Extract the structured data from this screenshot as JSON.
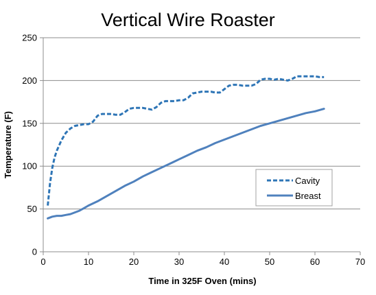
{
  "chart_data": {
    "type": "line",
    "title": "Vertical Wire Roaster",
    "xlabel": "Time in 325F  Oven (mins)",
    "ylabel": "Temperature (F)",
    "xlim": [
      0,
      70
    ],
    "ylim": [
      0,
      250
    ],
    "xticks": [
      0,
      10,
      20,
      30,
      40,
      50,
      60,
      70
    ],
    "yticks": [
      0,
      50,
      100,
      150,
      200,
      250
    ],
    "grid": "horizontal",
    "legend": "right",
    "series": [
      {
        "name": "Cavity",
        "style": "dashed",
        "color": "#2E75B6",
        "x": [
          1,
          1.5,
          2,
          2.5,
          3,
          3.5,
          4,
          5,
          6,
          7,
          8,
          9,
          10,
          11,
          12,
          13,
          14,
          15,
          16,
          17,
          18,
          19,
          20,
          21,
          22,
          23,
          24,
          25,
          26,
          27,
          28,
          29,
          30,
          31,
          32,
          33,
          34,
          35,
          36,
          37,
          38,
          39,
          40,
          41,
          42,
          43,
          44,
          45,
          46,
          47,
          48,
          49,
          50,
          51,
          52,
          53,
          54,
          55,
          56,
          57,
          58,
          59,
          60,
          61,
          62
        ],
        "values": [
          54,
          80,
          98,
          110,
          118,
          124,
          130,
          139,
          144,
          147,
          148,
          149,
          149,
          152,
          159,
          161,
          161,
          161,
          160,
          160,
          163,
          167,
          168,
          168,
          168,
          167,
          166,
          169,
          174,
          176,
          176,
          176,
          177,
          177,
          180,
          185,
          186,
          187,
          187,
          187,
          186,
          186,
          190,
          194,
          195,
          195,
          194,
          194,
          194,
          196,
          201,
          202,
          202,
          201,
          202,
          201,
          200,
          202,
          205,
          205,
          205,
          205,
          205,
          204,
          204
        ]
      },
      {
        "name": "Breast",
        "style": "solid",
        "color": "#4F81BD",
        "x": [
          1,
          2,
          3,
          4,
          5,
          6,
          7,
          8,
          9,
          10,
          12,
          14,
          16,
          18,
          20,
          22,
          24,
          26,
          28,
          30,
          32,
          34,
          36,
          38,
          40,
          42,
          44,
          46,
          48,
          50,
          52,
          54,
          56,
          58,
          60,
          62
        ],
        "values": [
          39,
          41,
          42,
          42,
          43,
          44,
          46,
          48,
          51,
          54,
          59,
          65,
          71,
          77,
          82,
          88,
          93,
          98,
          103,
          108,
          113,
          118,
          122,
          127,
          131,
          135,
          139,
          143,
          147,
          150,
          153,
          156,
          159,
          162,
          164,
          167
        ]
      }
    ]
  }
}
